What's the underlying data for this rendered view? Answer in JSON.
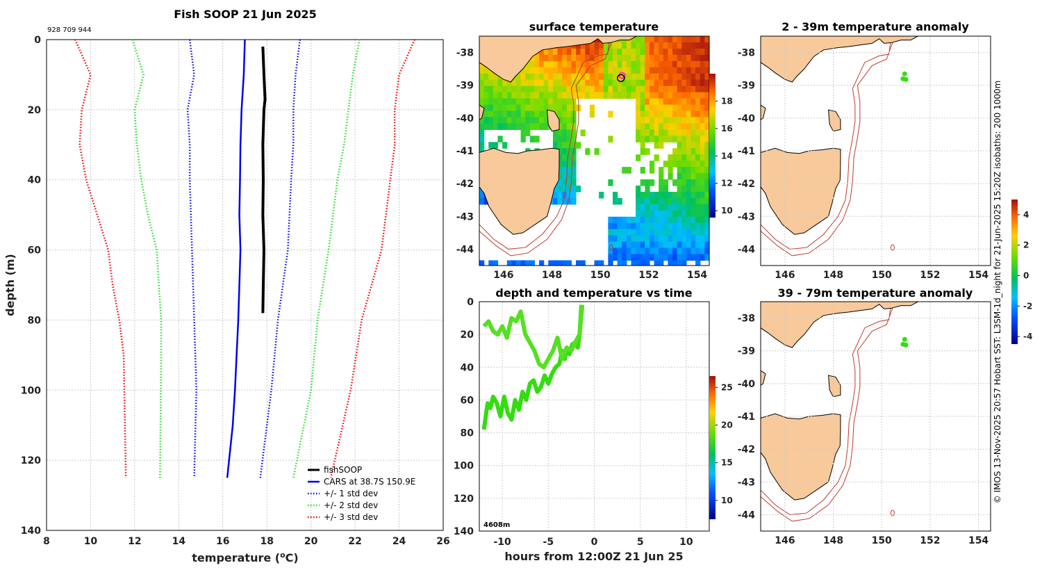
{
  "figure": {
    "id_text": "928 709 944",
    "side_note": "© IMOS 13-Nov-2025 20:57 Hobart SST: L3SM-1d_night for 21-Jun-2025 15:20Z isobaths: 200  1000m",
    "colors": {
      "land": "#f8c99a",
      "isobath": "#c0392b",
      "track": "#33dd11",
      "marker": "#ff33cc"
    }
  },
  "chart_data": [
    {
      "type": "line",
      "name": "profile",
      "title": "Fish SOOP 21 Jun 2025",
      "xlabel": "temperature (",
      "xlabel_sup": "o",
      "xlabel_tail": "C)",
      "ylabel": "depth (m)",
      "xlim": [
        8,
        26
      ],
      "ylim": [
        140,
        0
      ],
      "xticks": [
        "8",
        "10",
        "12",
        "14",
        "16",
        "18",
        "20",
        "22",
        "24",
        "26"
      ],
      "yticks": [
        "0",
        "20",
        "40",
        "60",
        "80",
        "100",
        "120",
        "140"
      ],
      "grid": true,
      "legend_position": "bottom-right",
      "legend": [
        "fishSOOP",
        "CARS at 38.7S 150.9E",
        "+/- 1 std dev",
        "+/- 2 std dev",
        "+/- 3 std dev"
      ],
      "series": [
        {
          "name": "fishSOOP",
          "color": "#000000",
          "style": "solid",
          "depth": [
            2,
            10,
            17,
            20,
            30,
            40,
            50,
            60,
            70,
            78
          ],
          "temp": [
            17.8,
            17.85,
            17.9,
            17.85,
            17.8,
            17.82,
            17.8,
            17.85,
            17.82,
            17.8
          ]
        },
        {
          "name": "CARS at 38.7S 150.9E",
          "color": "#0000ee",
          "style": "solid",
          "depth": [
            0,
            10,
            20,
            30,
            40,
            50,
            60,
            80,
            100,
            110,
            125
          ],
          "temp": [
            17.0,
            16.95,
            16.85,
            16.8,
            16.78,
            16.75,
            16.8,
            16.7,
            16.55,
            16.45,
            16.2
          ]
        },
        {
          "name": "+/- 1 std dev (low)",
          "color": "#0000ee",
          "style": "dotted",
          "depth": [
            0,
            10,
            20,
            30,
            40,
            60,
            80,
            100,
            125
          ],
          "temp": [
            14.5,
            14.7,
            14.4,
            14.5,
            14.5,
            14.6,
            14.7,
            14.8,
            14.7
          ]
        },
        {
          "name": "+/- 1 std dev (high)",
          "color": "#0000ee",
          "style": "dotted",
          "depth": [
            0,
            10,
            20,
            30,
            40,
            60,
            80,
            100,
            125
          ],
          "temp": [
            19.5,
            19.3,
            19.2,
            19.2,
            19.1,
            18.95,
            18.5,
            18.2,
            17.7
          ]
        },
        {
          "name": "+/- 2 std dev (low)",
          "color": "#22dd22",
          "style": "dotted",
          "depth": [
            0,
            10,
            20,
            30,
            40,
            50,
            60,
            80,
            90,
            125
          ],
          "temp": [
            11.9,
            12.4,
            12.0,
            12.1,
            12.3,
            12.6,
            13.0,
            13.2,
            13.2,
            13.15
          ]
        },
        {
          "name": "+/- 2 std dev (high)",
          "color": "#22dd22",
          "style": "dotted",
          "depth": [
            0,
            10,
            20,
            30,
            40,
            60,
            80,
            100,
            125
          ],
          "temp": [
            22.2,
            21.9,
            21.7,
            21.5,
            21.2,
            20.8,
            20.3,
            20.0,
            19.2
          ]
        },
        {
          "name": "+/- 3 std dev (low)",
          "color": "#ee0000",
          "style": "dotted",
          "depth": [
            0,
            10,
            20,
            30,
            40,
            50,
            60,
            70,
            80,
            90,
            125
          ],
          "temp": [
            9.3,
            10.0,
            9.6,
            9.5,
            9.8,
            10.3,
            10.8,
            11.0,
            11.3,
            11.5,
            11.6
          ]
        },
        {
          "name": "+/- 3 std dev (high)",
          "color": "#ee0000",
          "style": "dotted",
          "depth": [
            0,
            10,
            20,
            30,
            40,
            60,
            80,
            100,
            125
          ],
          "temp": [
            24.7,
            24.0,
            23.8,
            23.8,
            23.6,
            23.2,
            22.3,
            21.8,
            20.9
          ]
        }
      ]
    },
    {
      "type": "heatmap",
      "name": "sst",
      "title": "surface temperature",
      "xlim": [
        145,
        154.5
      ],
      "ylim": [
        -44.5,
        -37.5
      ],
      "xticks": [
        "146",
        "148",
        "150",
        "152",
        "154"
      ],
      "yticks": [
        "-38",
        "-39",
        "-40",
        "-41",
        "-42",
        "-43",
        "-44"
      ],
      "colorbar": {
        "min": 9.5,
        "max": 20,
        "ticks": [
          "10",
          "12",
          "14",
          "16",
          "18"
        ]
      }
    },
    {
      "type": "line",
      "name": "timeseries",
      "title": "depth and temperature vs time",
      "xlabel": "hours from 12:00Z 21 Jun 25",
      "xlim": [
        -12.5,
        12.5
      ],
      "ylim": [
        140,
        0
      ],
      "xticks": [
        "-10",
        "-5",
        "0",
        "5",
        "10"
      ],
      "yticks": [
        "0",
        "20",
        "40",
        "60",
        "80",
        "100",
        "120",
        "140"
      ],
      "corner_label": "4608m",
      "colorbar": {
        "min": 7.5,
        "max": 26.5,
        "ticks": [
          "10",
          "15",
          "20",
          "25"
        ]
      },
      "track": {
        "hours": [
          -12.0,
          -11.6,
          -11.3,
          -11.0,
          -10.6,
          -10.2,
          -9.8,
          -9.4,
          -9.0,
          -8.6,
          -8.2,
          -7.8,
          -7.4,
          -7.0,
          -6.6,
          -6.2,
          -5.8,
          -5.4,
          -5.0,
          -4.6,
          -4.2,
          -3.8,
          -3.5,
          -3.2,
          -3.0,
          -2.7,
          -2.4,
          -2.1,
          -1.8,
          -1.6,
          -1.4
        ],
        "depth": [
          78,
          62,
          65,
          58,
          62,
          70,
          58,
          68,
          72,
          60,
          66,
          55,
          60,
          50,
          48,
          55,
          52,
          45,
          50,
          44,
          40,
          38,
          30,
          35,
          28,
          32,
          26,
          25,
          28,
          20,
          2
        ]
      },
      "track2": {
        "hours": [
          -12.0,
          -11.5,
          -11.0,
          -10.5,
          -10.0,
          -9.5,
          -9.0,
          -8.5,
          -8.0,
          -7.5,
          -7.0,
          -6.5,
          -6.0,
          -5.5,
          -5.0,
          -4.5,
          -4.0,
          -3.5,
          -3.0,
          -2.5,
          -2.0,
          -1.6,
          -1.3
        ],
        "depth": [
          15,
          12,
          18,
          20,
          15,
          22,
          10,
          12,
          6,
          20,
          25,
          30,
          38,
          40,
          35,
          30,
          22,
          35,
          28,
          30,
          24,
          20,
          2
        ]
      }
    },
    {
      "type": "heatmap",
      "name": "anom1",
      "title": "2 - 39m temperature anomaly",
      "xlim": [
        145,
        154.5
      ],
      "ylim": [
        -44.5,
        -37.5
      ],
      "xticks": [
        "146",
        "148",
        "150",
        "152",
        "154"
      ],
      "yticks": [
        "-38",
        "-39",
        "-40",
        "-41",
        "-42",
        "-43",
        "-44"
      ],
      "colorbar": {
        "min": -4.5,
        "max": 5,
        "ticks": [
          "4",
          "2",
          "0",
          "-2",
          "-4"
        ]
      }
    },
    {
      "type": "heatmap",
      "name": "anom2",
      "title": "39 - 79m temperature anomaly",
      "xlim": [
        145,
        154.5
      ],
      "ylim": [
        -44.5,
        -37.5
      ],
      "xticks": [
        "146",
        "148",
        "150",
        "152",
        "154"
      ],
      "yticks": [
        "-38",
        "-39",
        "-40",
        "-41",
        "-42",
        "-43",
        "-44"
      ]
    }
  ]
}
